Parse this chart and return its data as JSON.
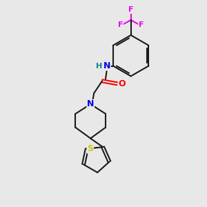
{
  "background_color": "#e8e8e8",
  "bond_color": "#1a1a1a",
  "atom_colors": {
    "N": "#0000ee",
    "O": "#ff0000",
    "S": "#cccc00",
    "F": "#ee00ee",
    "H_on_N": "#008888",
    "C": "#1a1a1a"
  },
  "figsize": [
    3.0,
    3.0
  ],
  "dpi": 100
}
